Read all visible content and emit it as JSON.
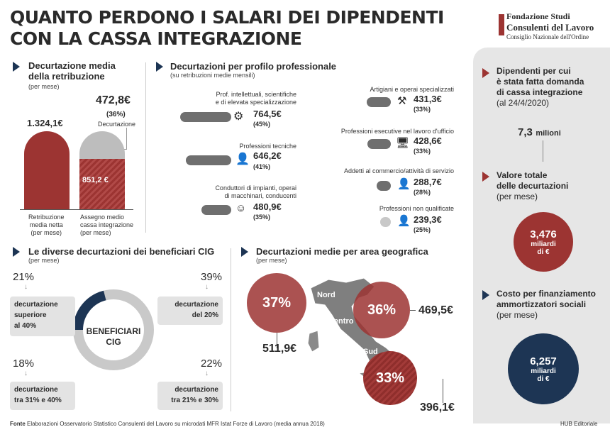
{
  "header": {
    "title_line1": "QUANTO PERDONO I SALARI DEI DIPENDENTI",
    "title_line2": "CON LA CASSA INTEGRAZIONE",
    "logo_line1": "Fondazione Studi",
    "logo_line2": "Consulenti del Lavoro",
    "logo_line3": "Consiglio Nazionale dell'Ordine"
  },
  "s1": {
    "title_line1": "Decurtazione media",
    "title_line2": "della retribuzione",
    "sub": "(per mese)",
    "bar1_value": "1.324,1€",
    "bar2_value": "851,2 €",
    "cut_value": "472,8€",
    "cut_pct": "(36%)",
    "cut_label": "Decurtazione",
    "bar1_label1": "Retribuzione",
    "bar1_label2": "media netta",
    "bar1_label3": "(per mese)",
    "bar2_label1": "Assegno medio",
    "bar2_label2": "cassa integrazione",
    "bar2_label3": "(per mese)",
    "bar1_amount": 1324.1,
    "bar2_amount": 851.2
  },
  "s2": {
    "title": "Decurtazioni per profilo professionale",
    "sub": "(su retribuzioni medie mensili)",
    "left": [
      {
        "l1": "Prof. intellettuali, scientifiche",
        "l2": "e di elevata specializzazione",
        "value": "764,5€",
        "pct": "(45%)"
      },
      {
        "l1": "",
        "l2": "Professioni tecniche",
        "value": "646,2€",
        "pct": "(41%)"
      },
      {
        "l1": "Conduttori di impianti, operai",
        "l2": "di macchinari, conducenti",
        "value": "480,9€",
        "pct": "(35%)"
      }
    ],
    "right": [
      {
        "label": "Artigiani e operai specializzati",
        "value": "431,3€",
        "pct": "(33%)"
      },
      {
        "label": "Professioni esecutive nel lavoro d'ufficio",
        "value": "428,6€",
        "pct": "(33%)"
      },
      {
        "label": "Addetti al commercio/attività di servizio",
        "value": "288,7€",
        "pct": "(28%)"
      },
      {
        "label": "Professioni non qualificate",
        "value": "239,3€",
        "pct": "(25%)"
      }
    ]
  },
  "s3": {
    "title": "Le diverse decurtazioni dei beneficiari CIG",
    "sub": "(per mese)",
    "center_l1": "BENEFICIARI",
    "center_l2": "CIG",
    "items": [
      {
        "pct": "21%",
        "l1": "decurtazione",
        "l2": "superiore",
        "l3": "al 40%"
      },
      {
        "pct": "39%",
        "l1": "decurtazione",
        "l2": "del 20%",
        "l3": ""
      },
      {
        "pct": "18%",
        "l1": "decurtazione",
        "l2": "tra 31% e 40%",
        "l3": ""
      },
      {
        "pct": "22%",
        "l1": "decurtazione",
        "l2": "tra 21% e 30%",
        "l3": ""
      }
    ]
  },
  "s4": {
    "title": "Decurtazioni medie per area geografica",
    "sub": "(per mese)",
    "nord_label": "Nord",
    "centro_label": "Centro",
    "sud_label": "Sud",
    "nord_pct": "37%",
    "centro_pct": "36%",
    "sud_pct": "33%",
    "nord_value": "511,9€",
    "centro_value": "469,5€",
    "sud_value": "396,1€"
  },
  "s5": {
    "title_l1": "Dipendenti per cui",
    "title_l2": "è stata fatta domanda",
    "title_l3": "di cassa integrazione",
    "date": "(al 24/4/2020)",
    "count_num": "7,3",
    "count_unit": "milioni",
    "total_l1": "Valore totale",
    "total_l2": "delle decurtazioni",
    "total_sub": "(per mese)",
    "total_num": "3,476",
    "total_l3": "miliardi",
    "total_l4": "di €",
    "cost_l1": "Costo per finanziamento",
    "cost_l2": "ammortizzatori sociali",
    "cost_sub": "(per mese)",
    "cost_num": "6,257",
    "cost_l3": "miliardi",
    "cost_l4": "di €"
  },
  "footer": {
    "fonte_label": "Fonte",
    "fonte_text": " Elaborazioni Osservatorio Statistico Consulenti del Lavoro su microdati MFR Istat Forze di Lavoro (media annua 2018)",
    "hub": "HUB Editoriale"
  },
  "colors": {
    "red": "#9c3432",
    "navy": "#1d3554",
    "gray": "#6f6f6f",
    "light": "#e6e6e6"
  }
}
